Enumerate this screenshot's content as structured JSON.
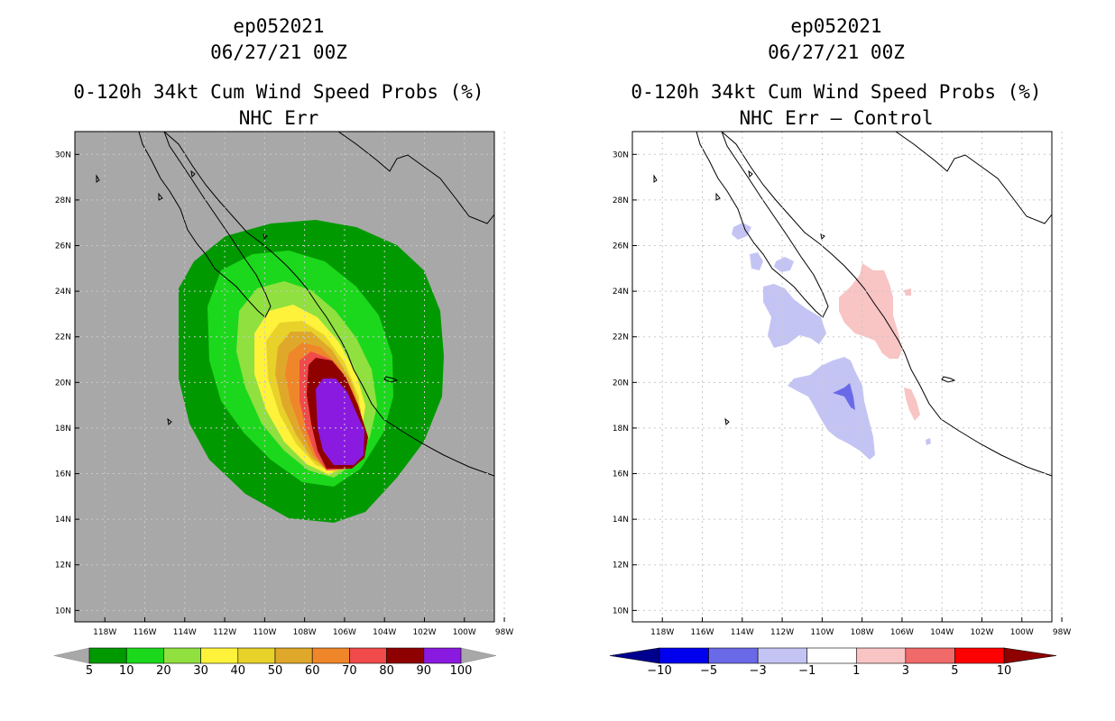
{
  "chart_data": [
    {
      "type": "heatmap",
      "panel": "left",
      "title_lines": [
        "ep052021",
        "06/27/21 00Z",
        "0-120h 34kt Cum Wind Speed Probs (%)",
        "NHC Err"
      ],
      "x_ticks": [
        "118W",
        "116W",
        "114W",
        "112W",
        "110W",
        "108W",
        "106W",
        "104W",
        "102W",
        "100W",
        "98W"
      ],
      "y_ticks": [
        "10N",
        "12N",
        "14N",
        "16N",
        "18N",
        "20N",
        "22N",
        "24N",
        "26N",
        "28N",
        "30N"
      ],
      "lon_range": [
        -119.5,
        -98.5
      ],
      "lat_range": [
        9.5,
        31
      ],
      "colorbar": {
        "labels": [
          "5",
          "10",
          "20",
          "30",
          "40",
          "50",
          "60",
          "70",
          "80",
          "90",
          "100"
        ],
        "colors": [
          "#009a00",
          "#1cd81c",
          "#90e040",
          "#fff23a",
          "#e8d22a",
          "#e0a82a",
          "#ef862a",
          "#f04a4a",
          "#8f0000",
          "#8a1ae0"
        ]
      }
    },
    {
      "type": "heatmap",
      "panel": "right",
      "title_lines": [
        "ep052021",
        "06/27/21 00Z",
        "0-120h 34kt Cum Wind Speed Probs (%)",
        "NHC Err – Control"
      ],
      "x_ticks": [
        "118W",
        "116W",
        "114W",
        "112W",
        "110W",
        "108W",
        "106W",
        "104W",
        "102W",
        "100W",
        "98W"
      ],
      "y_ticks": [
        "10N",
        "12N",
        "14N",
        "16N",
        "18N",
        "20N",
        "22N",
        "24N",
        "26N",
        "28N",
        "30N"
      ],
      "lon_range": [
        -119.5,
        -98.5
      ],
      "lat_range": [
        9.5,
        31
      ],
      "colorbar": {
        "labels": [
          "−10",
          "−5",
          "−3",
          "−1",
          "1",
          "3",
          "5",
          "10"
        ],
        "colors": [
          "#00008f",
          "#0000ee",
          "#6a6ae8",
          "#c4c4f4",
          "#ffffff",
          "#f8c4c4",
          "#f06a6a",
          "#ff0000",
          "#8f0000"
        ]
      }
    }
  ]
}
